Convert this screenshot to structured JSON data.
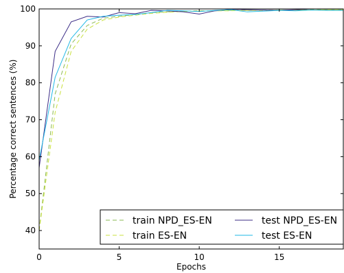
{
  "chart_data": {
    "type": "line",
    "title": "",
    "xlabel": "Epochs",
    "ylabel": "Percentage correct sentences (%)",
    "xlim": [
      0,
      19
    ],
    "ylim": [
      35,
      100
    ],
    "xticks": [
      0,
      5,
      10,
      15
    ],
    "yticks": [
      40,
      50,
      60,
      70,
      80,
      90,
      100
    ],
    "grid": false,
    "legend": {
      "placement": "lower-right",
      "columns": 2
    },
    "x": [
      0,
      1,
      2,
      3,
      4,
      5,
      6,
      7,
      8,
      9,
      10,
      11,
      12,
      13,
      14,
      15,
      16,
      17,
      18,
      19
    ],
    "series": [
      {
        "name": "train NPD_ES-EN",
        "color": "#8ab850",
        "dash": "dashed",
        "values": [
          40,
          77,
          90.5,
          95.5,
          97.5,
          98,
          98.5,
          99,
          99.2,
          99.4,
          99.5,
          99.5,
          99.6,
          99.6,
          99.7,
          99.7,
          99.7,
          99.8,
          99.8,
          99.8
        ]
      },
      {
        "name": "train ES-EN",
        "color": "#c8e03c",
        "dash": "dashed",
        "values": [
          40,
          72,
          88.5,
          94.5,
          97,
          97.8,
          98.3,
          98.8,
          99.1,
          99.3,
          99.4,
          99.5,
          99.5,
          99.6,
          99.6,
          99.7,
          99.7,
          99.7,
          99.8,
          99.8
        ]
      },
      {
        "name": "test NPD_ES-EN",
        "color": "#3b2c86",
        "dash": "solid",
        "values": [
          57,
          88.5,
          96.5,
          98,
          97.8,
          99,
          98.7,
          99.6,
          99.5,
          99.2,
          98.6,
          99.5,
          99.9,
          99.8,
          99.7,
          99.6,
          99.8,
          100,
          100,
          100
        ]
      },
      {
        "name": "test ES-EN",
        "color": "#1eb7e6",
        "dash": "solid",
        "values": [
          59,
          81.5,
          92,
          97,
          98,
          98.3,
          98.5,
          99,
          99.6,
          99.5,
          99.3,
          99.6,
          99.8,
          99.2,
          99.4,
          99.6,
          99.5,
          99.7,
          99.6,
          99.6
        ]
      }
    ]
  }
}
